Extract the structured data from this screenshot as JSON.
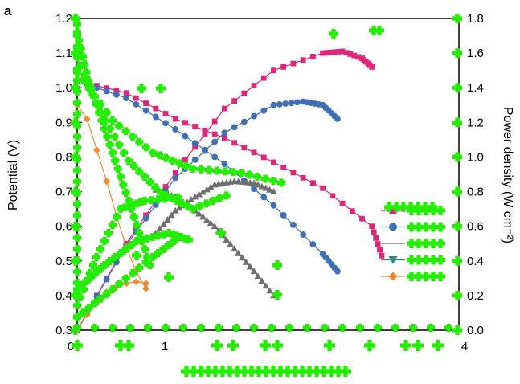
{
  "panel_label": "a",
  "colors": {
    "pink": "#e0267a",
    "blue": "#3f6fb5",
    "gray": "#6e6e6e",
    "teal": "#2c8d8a",
    "orange": "#f08a30",
    "marker_overlay": "#22ee00"
  },
  "chart_data": {
    "type": "line",
    "title": "",
    "xlabel": "",
    "ylabel": "Potential (V)",
    "ylabel_right": "Power density (W cm⁻²)",
    "ylim": [
      0.3,
      1.2
    ],
    "ylim_right": [
      0.0,
      1.8
    ],
    "xlim": [
      0,
      4
    ],
    "y_ticks": [
      "0.3",
      "0.4",
      "0.5",
      "0.6",
      "0.7",
      "0.8",
      "0.9",
      "1.0",
      "1.1",
      "1.2"
    ],
    "y_right_ticks": [
      "0.0",
      "0.2",
      "0.4",
      "0.6",
      "0.8",
      "1.0",
      "1.2",
      "1.4",
      "1.6",
      "1.8"
    ],
    "x_ticks_visible": [
      "0",
      "1",
      "4"
    ],
    "legend_placement": "right",
    "series": [
      {
        "key": "pink",
        "marker": "square",
        "polarization_x": [
          0.0,
          0.5,
          1.0,
          1.5,
          2.0,
          2.5,
          3.0,
          3.1
        ],
        "polarization_y": [
          1.02,
          0.985,
          0.91,
          0.855,
          0.785,
          0.71,
          0.6,
          0.515
        ],
        "power_x": [
          0.0,
          0.5,
          1.0,
          1.5,
          2.0,
          2.5,
          2.7,
          2.9,
          3.0
        ],
        "power_y": [
          0.0,
          0.5,
          0.91,
          1.28,
          1.5,
          1.6,
          1.61,
          1.57,
          1.52
        ]
      },
      {
        "key": "blue",
        "marker": "circle",
        "polarization_x": [
          0.0,
          0.5,
          1.0,
          1.5,
          2.0,
          2.5,
          2.65
        ],
        "polarization_y": [
          1.02,
          0.97,
          0.88,
          0.78,
          0.66,
          0.52,
          0.47
        ],
        "power_x": [
          0.0,
          0.5,
          1.0,
          1.5,
          2.0,
          2.3,
          2.5,
          2.65
        ],
        "power_y": [
          0.0,
          0.49,
          0.88,
          1.14,
          1.3,
          1.32,
          1.3,
          1.22
        ]
      },
      {
        "key": "gray",
        "marker": "triangle-up",
        "polarization_x": [
          0.8,
          1.0,
          1.2,
          1.4,
          1.6,
          1.8,
          2.0
        ],
        "polarization_y": [
          0.705,
          0.685,
          0.645,
          0.6,
          0.535,
          0.47,
          0.4
        ],
        "power_x": [
          0.8,
          1.0,
          1.2,
          1.4,
          1.6,
          1.8,
          2.0
        ],
        "power_y": [
          0.56,
          0.69,
          0.77,
          0.84,
          0.86,
          0.85,
          0.8
        ]
      },
      {
        "key": "orange",
        "marker": "diamond",
        "polarization_x": [
          0.0,
          0.1,
          0.2,
          0.3,
          0.4,
          0.5,
          0.6,
          0.7
        ],
        "polarization_y": [
          0.95,
          0.91,
          0.82,
          0.73,
          0.63,
          0.54,
          0.47,
          0.42
        ],
        "power_x": [
          0.0,
          0.1,
          0.2,
          0.3,
          0.4,
          0.5,
          0.6,
          0.7
        ],
        "power_y": [
          0.0,
          0.09,
          0.16,
          0.22,
          0.25,
          0.27,
          0.28,
          0.27
        ]
      }
    ],
    "legend_entries": [
      {
        "key": "pink",
        "marker": "square"
      },
      {
        "key": "blue",
        "marker": "circle"
      },
      {
        "key": "gray",
        "marker": "line"
      },
      {
        "key": "teal",
        "marker": "triangle-down"
      },
      {
        "key": "orange",
        "marker": "diamond"
      }
    ]
  }
}
